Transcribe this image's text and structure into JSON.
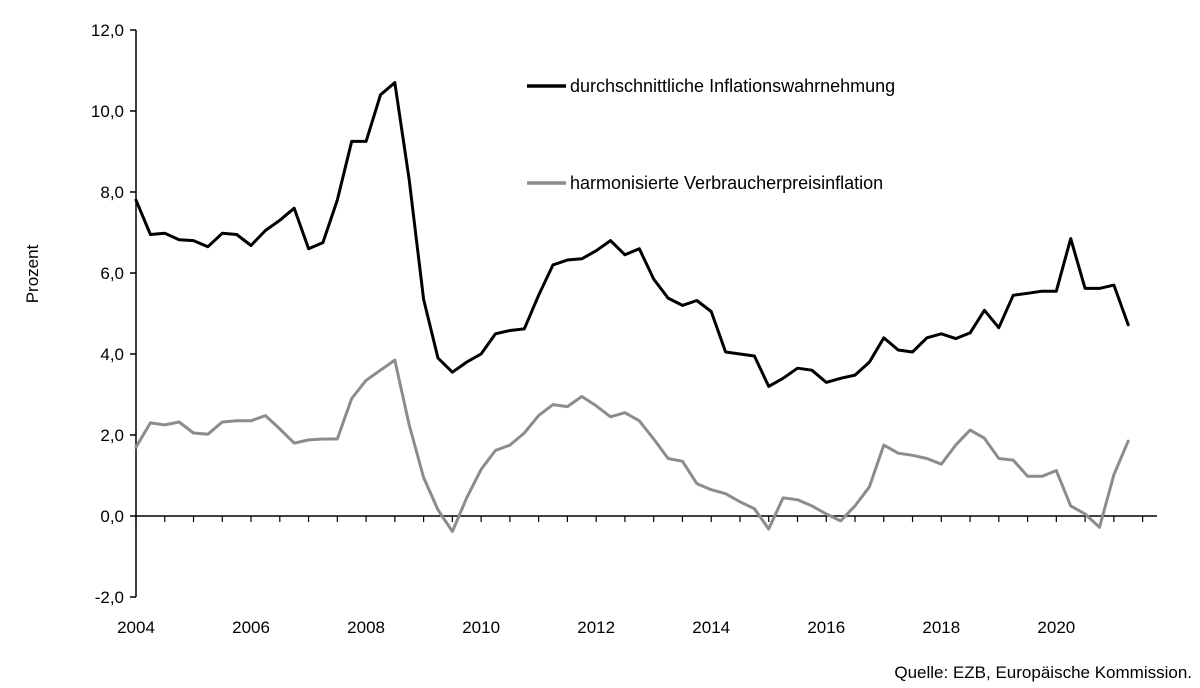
{
  "chart_data": {
    "type": "line",
    "title": "",
    "xlabel": "",
    "ylabel": "Prozent",
    "source": "Quelle: EZB, Europäische Kommission.",
    "x_ticks": [
      "2004",
      "2006",
      "2008",
      "2010",
      "2012",
      "2014",
      "2016",
      "2018",
      "2020"
    ],
    "y_ticks": [
      "-2,0",
      "0,0",
      "2,0",
      "4,0",
      "6,0",
      "8,0",
      "10,0",
      "12,0"
    ],
    "xlim": [
      2004,
      2021.75
    ],
    "ylim": [
      -2,
      12
    ],
    "grid": false,
    "legend_position": "top-right",
    "colors": {
      "perceived": "#000000",
      "hicp": "#8c8c8c"
    },
    "series": [
      {
        "name": "durchschnittliche Inflationswahrnehmung",
        "key": "perceived",
        "x": [
          2004.0,
          2004.25,
          2004.5,
          2004.75,
          2005.0,
          2005.25,
          2005.5,
          2005.75,
          2006.0,
          2006.25,
          2006.5,
          2006.75,
          2007.0,
          2007.25,
          2007.5,
          2007.75,
          2008.0,
          2008.25,
          2008.5,
          2008.75,
          2009.0,
          2009.25,
          2009.5,
          2009.75,
          2010.0,
          2010.25,
          2010.5,
          2010.75,
          2011.0,
          2011.25,
          2011.5,
          2011.75,
          2012.0,
          2012.25,
          2012.5,
          2012.75,
          2013.0,
          2013.25,
          2013.5,
          2013.75,
          2014.0,
          2014.25,
          2014.5,
          2014.75,
          2015.0,
          2015.25,
          2015.5,
          2015.75,
          2016.0,
          2016.25,
          2016.5,
          2016.75,
          2017.0,
          2017.25,
          2017.5,
          2017.75,
          2018.0,
          2018.25,
          2018.5,
          2018.75,
          2019.0,
          2019.25,
          2019.5,
          2019.75,
          2020.0,
          2020.25,
          2020.5,
          2020.75,
          2021.0,
          2021.25
        ],
        "values": [
          7.8,
          6.95,
          6.98,
          6.82,
          6.8,
          6.65,
          6.98,
          6.95,
          6.68,
          7.05,
          7.3,
          7.6,
          6.6,
          6.75,
          7.8,
          9.25,
          9.25,
          10.4,
          10.7,
          8.3,
          5.35,
          3.9,
          3.55,
          3.8,
          4.0,
          4.5,
          4.58,
          4.62,
          5.45,
          6.2,
          6.32,
          6.35,
          6.55,
          6.8,
          6.45,
          6.6,
          5.85,
          5.38,
          5.2,
          5.32,
          5.05,
          4.05,
          4.0,
          3.95,
          3.2,
          3.4,
          3.65,
          3.6,
          3.3,
          3.4,
          3.48,
          3.8,
          4.4,
          4.1,
          4.05,
          4.4,
          4.5,
          4.38,
          4.52,
          5.08,
          4.65,
          5.45,
          5.5,
          5.55,
          5.55,
          6.85,
          5.62,
          5.62,
          5.7,
          4.72
        ]
      },
      {
        "name": "harmonisierte Verbraucherpreisinflation",
        "key": "hicp",
        "x": [
          2004.0,
          2004.25,
          2004.5,
          2004.75,
          2005.0,
          2005.25,
          2005.5,
          2005.75,
          2006.0,
          2006.25,
          2006.5,
          2006.75,
          2007.0,
          2007.25,
          2007.5,
          2007.75,
          2008.0,
          2008.25,
          2008.5,
          2008.75,
          2009.0,
          2009.25,
          2009.5,
          2009.75,
          2010.0,
          2010.25,
          2010.5,
          2010.75,
          2011.0,
          2011.25,
          2011.5,
          2011.75,
          2012.0,
          2012.25,
          2012.5,
          2012.75,
          2013.0,
          2013.25,
          2013.5,
          2013.75,
          2014.0,
          2014.25,
          2014.5,
          2014.75,
          2015.0,
          2015.25,
          2015.5,
          2015.75,
          2016.0,
          2016.25,
          2016.5,
          2016.75,
          2017.0,
          2017.25,
          2017.5,
          2017.75,
          2018.0,
          2018.25,
          2018.5,
          2018.75,
          2019.0,
          2019.25,
          2019.5,
          2019.75,
          2020.0,
          2020.25,
          2020.5,
          2020.75,
          2021.0,
          2021.25
        ],
        "values": [
          1.7,
          2.3,
          2.25,
          2.32,
          2.05,
          2.02,
          2.32,
          2.35,
          2.35,
          2.48,
          2.15,
          1.8,
          1.88,
          1.9,
          1.9,
          2.9,
          3.35,
          3.6,
          3.85,
          2.25,
          0.95,
          0.15,
          -0.38,
          0.45,
          1.15,
          1.62,
          1.75,
          2.05,
          2.48,
          2.75,
          2.7,
          2.95,
          2.72,
          2.45,
          2.55,
          2.35,
          1.9,
          1.42,
          1.35,
          0.8,
          0.65,
          0.55,
          0.35,
          0.18,
          -0.32,
          0.45,
          0.4,
          0.25,
          0.05,
          -0.12,
          0.25,
          0.72,
          1.75,
          1.55,
          1.5,
          1.42,
          1.28,
          1.75,
          2.12,
          1.92,
          1.42,
          1.38,
          0.98,
          0.98,
          1.12,
          0.25,
          0.05,
          -0.28,
          1.02,
          1.85
        ]
      }
    ]
  }
}
